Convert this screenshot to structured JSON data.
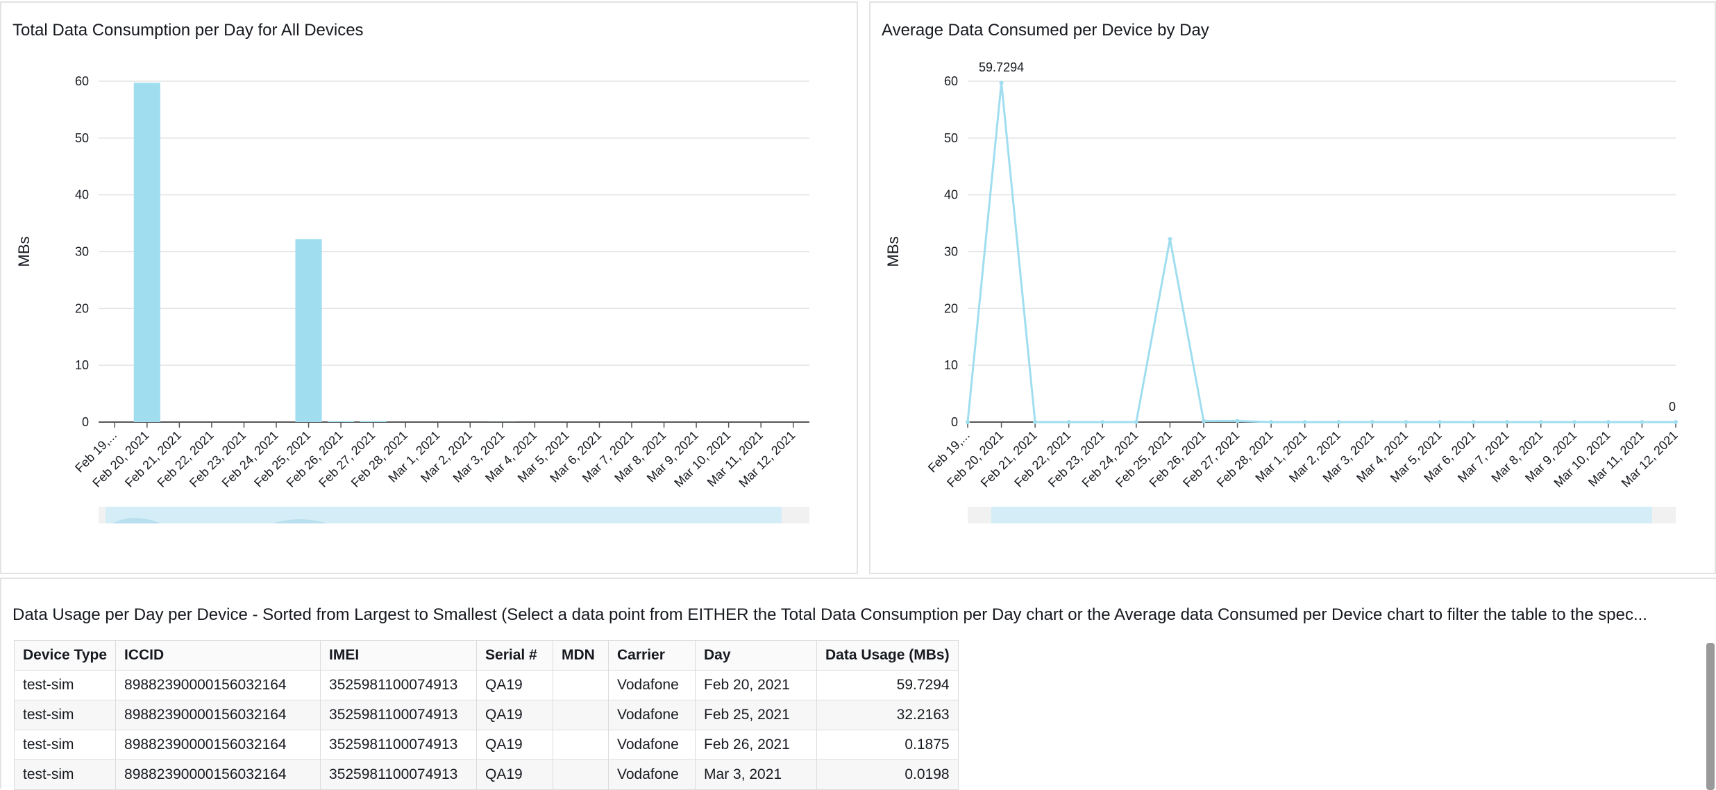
{
  "left_panel": {
    "title": "Total Data Consumption per Day for All Devices"
  },
  "right_panel": {
    "title": "Average Data Consumed per Device by Day"
  },
  "chart_data": [
    {
      "type": "bar",
      "title": "Total Data Consumption per Day for All Devices",
      "xlabel": "",
      "ylabel": "MBs",
      "ylim": [
        0,
        60
      ],
      "yticks": [
        0,
        10,
        20,
        30,
        40,
        50,
        60
      ],
      "grid": true,
      "categories": [
        "Feb 19,...",
        "Feb 20, 2021",
        "Feb 21, 2021",
        "Feb 22, 2021",
        "Feb 23, 2021",
        "Feb 24, 2021",
        "Feb 25, 2021",
        "Feb 26, 2021",
        "Feb 27, 2021",
        "Feb 28, 2021",
        "Mar 1, 2021",
        "Mar 2, 2021",
        "Mar 3, 2021",
        "Mar 4, 2021",
        "Mar 5, 2021",
        "Mar 6, 2021",
        "Mar 7, 2021",
        "Mar 8, 2021",
        "Mar 9, 2021",
        "Mar 10, 2021",
        "Mar 11, 2021",
        "Mar 12, 2021"
      ],
      "values": [
        0,
        59.7294,
        0,
        0,
        0,
        0,
        32.2163,
        0.1875,
        0.2,
        0,
        0,
        0,
        0.0198,
        0,
        0,
        0,
        0,
        0,
        0,
        0,
        0,
        0
      ],
      "bar_color": "#a0deef"
    },
    {
      "type": "line",
      "title": "Average Data Consumed per Device by Day",
      "xlabel": "",
      "ylabel": "MBs",
      "ylim": [
        0,
        60
      ],
      "yticks": [
        0,
        10,
        20,
        30,
        40,
        50,
        60
      ],
      "grid": true,
      "categories": [
        "Feb 19,...",
        "Feb 20, 2021",
        "Feb 21, 2021",
        "Feb 22, 2021",
        "Feb 23, 2021",
        "Feb 24, 2021",
        "Feb 25, 2021",
        "Feb 26, 2021",
        "Feb 27, 2021",
        "Feb 28, 2021",
        "Mar 1, 2021",
        "Mar 2, 2021",
        "Mar 3, 2021",
        "Mar 4, 2021",
        "Mar 5, 2021",
        "Mar 6, 2021",
        "Mar 7, 2021",
        "Mar 8, 2021",
        "Mar 9, 2021",
        "Mar 10, 2021",
        "Mar 11, 2021",
        "Mar 12, 2021"
      ],
      "values": [
        0,
        59.7294,
        0,
        0,
        0,
        0,
        32.2163,
        0.1875,
        0.2,
        0,
        0,
        0,
        0.0198,
        0,
        0,
        0,
        0,
        0,
        0,
        0,
        0,
        0
      ],
      "data_labels": [
        {
          "index": 1,
          "text": "59.7294"
        },
        {
          "index": 21,
          "text": "0"
        }
      ],
      "line_color": "#a0deef"
    }
  ],
  "table": {
    "title": "Data Usage per Day per Device - Sorted from Largest to Smallest (Select a data point from EITHER the Total Data Consumption per Day chart or the Average data Consumed per Device chart to filter the table to the spec...",
    "columns": [
      "Device Type",
      "ICCID",
      "IMEI",
      "Serial #",
      "MDN",
      "Carrier",
      "Day",
      "Data Usage (MBs)"
    ],
    "rows": [
      [
        "test-sim",
        "89882390000156032164",
        "3525981100074913",
        "QA19",
        "",
        "Vodafone",
        "Feb 20, 2021",
        "59.7294"
      ],
      [
        "test-sim",
        "89882390000156032164",
        "3525981100074913",
        "QA19",
        "",
        "Vodafone",
        "Feb 25, 2021",
        "32.2163"
      ],
      [
        "test-sim",
        "89882390000156032164",
        "3525981100074913",
        "QA19",
        "",
        "Vodafone",
        "Feb 26, 2021",
        "0.1875"
      ],
      [
        "test-sim",
        "89882390000156032164",
        "3525981100074913",
        "QA19",
        "",
        "Vodafone",
        "Mar 3, 2021",
        "0.0198"
      ]
    ]
  }
}
